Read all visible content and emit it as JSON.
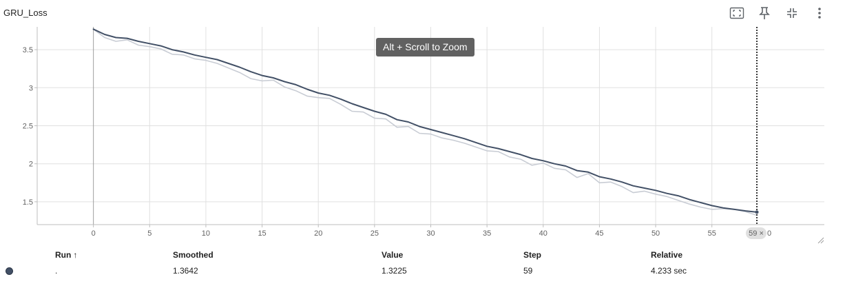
{
  "card": {
    "title": "GRU_Loss"
  },
  "toolbar": {
    "fit_icon": "fit-domain-icon",
    "pin_icon": "pin-icon",
    "collapse_icon": "collapse-icon",
    "more_icon": "more-vert-icon"
  },
  "tooltip": {
    "zoom_hint": "Alt + Scroll to Zoom"
  },
  "hover": {
    "step_chip": "59",
    "clear_symbol": "×",
    "partial_label": "0"
  },
  "colors": {
    "smoothed": "#425066",
    "raw": "#c8ccd4",
    "grid": "#e0e0e0",
    "run_dot": "#425066"
  },
  "chart_data": {
    "type": "line",
    "title": "GRU_Loss",
    "xlabel": "",
    "ylabel": "",
    "xlim": [
      -5,
      65
    ],
    "ylim": [
      1.2,
      3.8
    ],
    "x_ticks": [
      "0",
      "5",
      "10",
      "15",
      "20",
      "25",
      "30",
      "35",
      "40",
      "45",
      "50",
      "55"
    ],
    "y_ticks": [
      "1.5",
      "2",
      "2.5",
      "3",
      "3.5"
    ],
    "grid": true,
    "x": [
      0,
      1,
      2,
      3,
      4,
      5,
      6,
      7,
      8,
      9,
      10,
      11,
      12,
      13,
      14,
      15,
      16,
      17,
      18,
      19,
      20,
      21,
      22,
      23,
      24,
      25,
      26,
      27,
      28,
      29,
      30,
      31,
      32,
      33,
      34,
      35,
      36,
      37,
      38,
      39,
      40,
      41,
      42,
      43,
      44,
      45,
      46,
      47,
      48,
      49,
      50,
      51,
      52,
      53,
      54,
      55,
      56,
      57,
      58,
      59
    ],
    "series": [
      {
        "role": "smoothed",
        "values": [
          3.77,
          3.7,
          3.66,
          3.65,
          3.61,
          3.58,
          3.55,
          3.5,
          3.47,
          3.43,
          3.4,
          3.37,
          3.32,
          3.27,
          3.21,
          3.16,
          3.13,
          3.08,
          3.04,
          2.98,
          2.93,
          2.9,
          2.85,
          2.79,
          2.74,
          2.69,
          2.65,
          2.58,
          2.55,
          2.49,
          2.45,
          2.41,
          2.37,
          2.33,
          2.28,
          2.23,
          2.2,
          2.16,
          2.12,
          2.07,
          2.04,
          2.0,
          1.97,
          1.91,
          1.89,
          1.83,
          1.8,
          1.76,
          1.71,
          1.68,
          1.65,
          1.61,
          1.58,
          1.53,
          1.49,
          1.45,
          1.42,
          1.4,
          1.38,
          1.3642
        ]
      },
      {
        "role": "raw",
        "values": [
          3.77,
          3.66,
          3.61,
          3.63,
          3.56,
          3.54,
          3.51,
          3.44,
          3.43,
          3.38,
          3.36,
          3.32,
          3.26,
          3.2,
          3.12,
          3.09,
          3.1,
          3.01,
          2.96,
          2.89,
          2.87,
          2.86,
          2.78,
          2.69,
          2.68,
          2.6,
          2.59,
          2.48,
          2.49,
          2.4,
          2.39,
          2.34,
          2.31,
          2.27,
          2.22,
          2.17,
          2.16,
          2.09,
          2.06,
          1.98,
          2.01,
          1.94,
          1.92,
          1.82,
          1.87,
          1.75,
          1.76,
          1.7,
          1.62,
          1.64,
          1.6,
          1.57,
          1.52,
          1.47,
          1.43,
          1.4,
          1.41,
          1.4,
          1.37,
          1.3225
        ]
      }
    ],
    "hover_step": 59
  },
  "table": {
    "headers": {
      "run": "Run",
      "sort_arrow": "↑",
      "smoothed": "Smoothed",
      "value": "Value",
      "step": "Step",
      "relative": "Relative"
    },
    "rows": [
      {
        "run": ".",
        "smoothed": "1.3642",
        "value": "1.3225",
        "step": "59",
        "relative": "4.233 sec"
      }
    ]
  }
}
